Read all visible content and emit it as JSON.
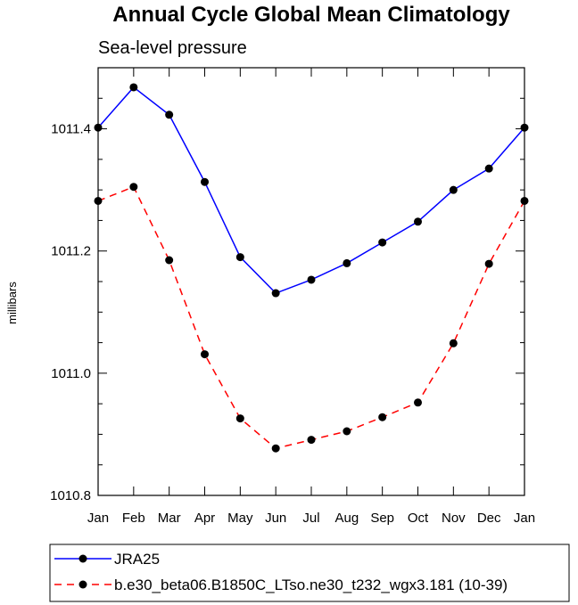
{
  "chart_data": {
    "type": "line",
    "title": "Annual Cycle Global Mean Climatology",
    "subtitle": "Sea-level pressure",
    "xlabel": "",
    "ylabel": "millibars",
    "categories": [
      "Jan",
      "Feb",
      "Mar",
      "Apr",
      "May",
      "Jun",
      "Jul",
      "Aug",
      "Sep",
      "Oct",
      "Nov",
      "Dec",
      "Jan"
    ],
    "ylim": [
      1010.8,
      1011.5
    ],
    "yticks": [
      1010.8,
      1011.0,
      1011.2,
      1011.4
    ],
    "ytick_labels": [
      "1010.8",
      "1011.0",
      "1011.2",
      "1011.4"
    ],
    "grid": false,
    "legend_position": "bottom",
    "series": [
      {
        "name": "JRA25",
        "color": "#0000ff",
        "dash": "solid",
        "values": [
          1011.402,
          1011.468,
          1011.423,
          1011.313,
          1011.19,
          1011.131,
          1011.153,
          1011.18,
          1011.214,
          1011.248,
          1011.3,
          1011.335,
          1011.402
        ]
      },
      {
        "name": "b.e30_beta06.B1850C_LTso.ne30_t232_wgx3.181 (10-39)",
        "color": "#ff0000",
        "dash": "dashed",
        "values": [
          1011.282,
          1011.305,
          1011.185,
          1011.031,
          1010.926,
          1010.877,
          1010.891,
          1010.905,
          1010.928,
          1010.952,
          1011.049,
          1011.179,
          1011.282
        ]
      }
    ]
  }
}
